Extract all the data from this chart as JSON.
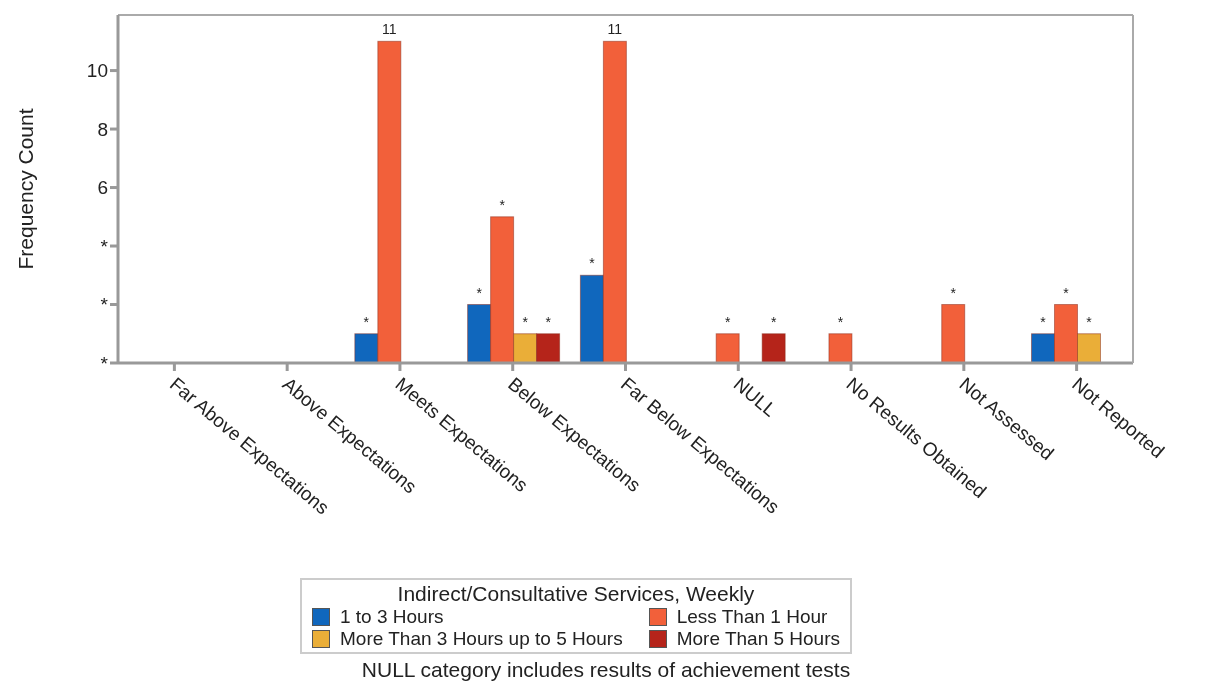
{
  "chart_data": {
    "type": "bar",
    "categories": [
      "Far Above Expectations",
      "Above Expectations",
      "Meets Expectations",
      "Below Expectations",
      "Far Below Expectations",
      "NULL",
      "No Results Obtained",
      "Not Assessed",
      "Not Reported"
    ],
    "series": [
      {
        "name": "1 to 3 Hours",
        "color": "#1067bd",
        "values": [
          null,
          null,
          1,
          2,
          3,
          null,
          null,
          null,
          1
        ],
        "value_labels": [
          null,
          null,
          "*",
          "*",
          "*",
          null,
          null,
          null,
          "*"
        ]
      },
      {
        "name": "Less Than 1 Hour",
        "color": "#f2603a",
        "values": [
          null,
          null,
          11,
          5,
          11,
          1,
          1,
          2,
          2
        ],
        "value_labels": [
          null,
          null,
          "11",
          "*",
          "11",
          "*",
          "*",
          "*",
          "*"
        ]
      },
      {
        "name": "More Than 3 Hours up to 5 Hours",
        "color": "#eaae38",
        "values": [
          null,
          null,
          null,
          1,
          null,
          null,
          null,
          null,
          1
        ],
        "value_labels": [
          null,
          null,
          null,
          "*",
          null,
          null,
          null,
          null,
          "*"
        ]
      },
      {
        "name": "More Than 5 Hours",
        "color": "#b5241a",
        "values": [
          null,
          null,
          null,
          1,
          null,
          1,
          null,
          null,
          null
        ],
        "value_labels": [
          null,
          null,
          null,
          "*",
          null,
          "*",
          null,
          null,
          null
        ]
      }
    ],
    "ylabel": "Frequency Count",
    "ylim": [
      0,
      11.9
    ],
    "yticks": [
      {
        "value": 0,
        "label": "*"
      },
      {
        "value": 2,
        "label": "*"
      },
      {
        "value": 4,
        "label": "*"
      },
      6,
      8,
      10
    ],
    "legend_title": "Indirect/Consultative Services, Weekly",
    "legend": "bottom",
    "grid": false,
    "annotations": [
      "NULL category includes results of achievement tests"
    ]
  }
}
